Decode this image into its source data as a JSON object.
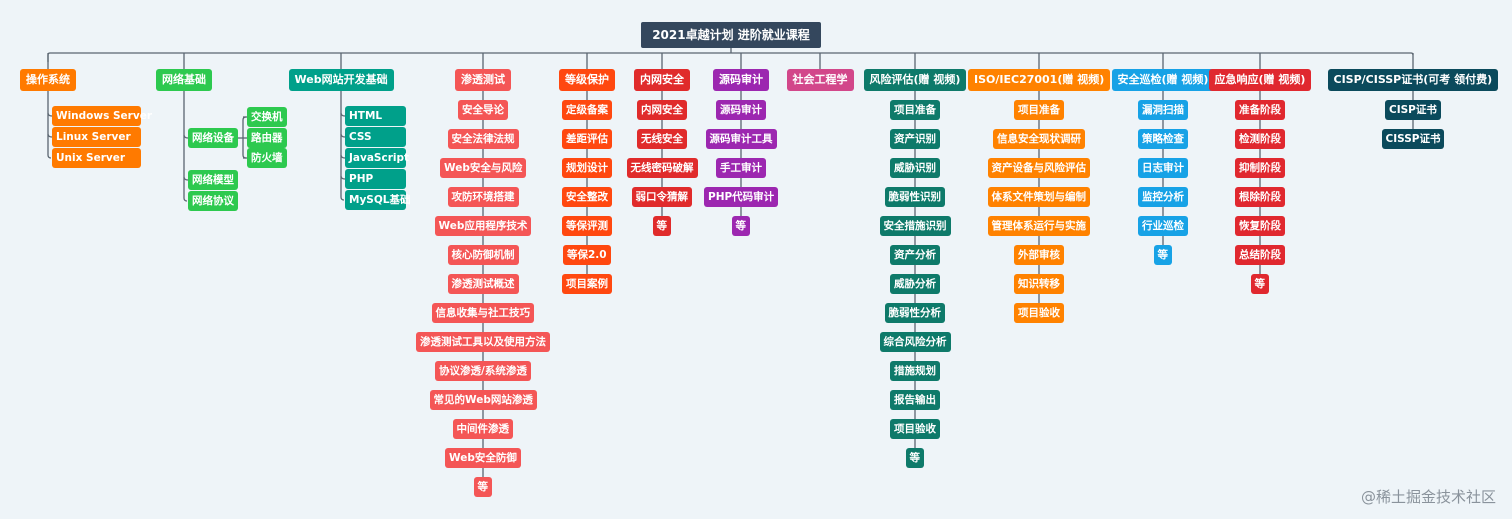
{
  "root": "2021卓越计划 进阶就业课程",
  "watermark": "@稀土掘金技术社区",
  "line_color": "#5a6570",
  "branches": [
    {
      "label": "操作系统",
      "color": "#ff7a00",
      "layout": "left",
      "children": [
        {
          "label": "Windows Server"
        },
        {
          "label": "Linux Server"
        },
        {
          "label": "Unix Server"
        }
      ]
    },
    {
      "label": "网络基础",
      "color": "#2dc94f",
      "layout": "left",
      "children": [
        {
          "label": "网络设备",
          "children": [
            {
              "label": "交换机"
            },
            {
              "label": "路由器"
            },
            {
              "label": "防火墙"
            }
          ]
        },
        {
          "label": "网络模型"
        },
        {
          "label": "网络协议"
        }
      ]
    },
    {
      "label": "Web网站开发基础",
      "color": "#00a08a",
      "layout": "left",
      "children": [
        {
          "label": "HTML"
        },
        {
          "label": "CSS"
        },
        {
          "label": "JavaScript"
        },
        {
          "label": "PHP"
        },
        {
          "label": "MySQL基础"
        }
      ]
    },
    {
      "label": "渗透测试",
      "color": "#f45656",
      "layout": "center",
      "children": [
        {
          "label": "安全导论"
        },
        {
          "label": "安全法律法规"
        },
        {
          "label": "Web安全与风险"
        },
        {
          "label": "攻防环境搭建"
        },
        {
          "label": "Web应用程序技术"
        },
        {
          "label": "核心防御机制"
        },
        {
          "label": "渗透测试概述"
        },
        {
          "label": "信息收集与社工技巧"
        },
        {
          "label": "渗透测试工具以及使用方法"
        },
        {
          "label": "协议渗透/系统渗透"
        },
        {
          "label": "常见的Web网站渗透"
        },
        {
          "label": "中间件渗透"
        },
        {
          "label": "Web安全防御"
        },
        {
          "label": "等"
        }
      ]
    },
    {
      "label": "等级保护",
      "color": "#ff4810",
      "layout": "center",
      "children": [
        {
          "label": "定级备案"
        },
        {
          "label": "差距评估"
        },
        {
          "label": "规划设计"
        },
        {
          "label": "安全整改"
        },
        {
          "label": "等保评测"
        },
        {
          "label": "等保2.0"
        },
        {
          "label": "项目案例"
        }
      ]
    },
    {
      "label": "内网安全",
      "color": "#e02b2b",
      "layout": "center",
      "children": [
        {
          "label": "内网安全"
        },
        {
          "label": "无线安全"
        },
        {
          "label": "无线密码破解"
        },
        {
          "label": "弱口令猜解"
        },
        {
          "label": "等"
        }
      ]
    },
    {
      "label": "源码审计",
      "color": "#9c27b0",
      "layout": "center",
      "children": [
        {
          "label": "源码审计"
        },
        {
          "label": "源码审计工具"
        },
        {
          "label": "手工审计"
        },
        {
          "label": "PHP代码审计"
        },
        {
          "label": "等"
        }
      ]
    },
    {
      "label": "社会工程学",
      "color": "#d2478a",
      "layout": "center",
      "children": []
    },
    {
      "label": "风险评估(赠 视频)",
      "color": "#0e7a6a",
      "layout": "center",
      "children": [
        {
          "label": "项目准备"
        },
        {
          "label": "资产识别"
        },
        {
          "label": "威胁识别"
        },
        {
          "label": "脆弱性识别"
        },
        {
          "label": "安全措施识别"
        },
        {
          "label": "资产分析"
        },
        {
          "label": "威胁分析"
        },
        {
          "label": "脆弱性分析"
        },
        {
          "label": "综合风险分析"
        },
        {
          "label": "措施规划"
        },
        {
          "label": "报告输出"
        },
        {
          "label": "项目验收"
        },
        {
          "label": "等"
        }
      ]
    },
    {
      "label": "ISO/IEC27001(赠 视频)",
      "color": "#ff8200",
      "layout": "center",
      "children": [
        {
          "label": "项目准备"
        },
        {
          "label": "信息安全现状调研"
        },
        {
          "label": "资产设备与风险评估"
        },
        {
          "label": "体系文件策划与编制"
        },
        {
          "label": "管理体系运行与实施"
        },
        {
          "label": "外部审核"
        },
        {
          "label": "知识转移"
        },
        {
          "label": "项目验收"
        }
      ]
    },
    {
      "label": "安全巡检(赠 视频)",
      "color": "#17a2e6",
      "layout": "center",
      "children": [
        {
          "label": "漏洞扫描"
        },
        {
          "label": "策略检查"
        },
        {
          "label": "日志审计"
        },
        {
          "label": "监控分析"
        },
        {
          "label": "行业巡检"
        },
        {
          "label": "等"
        }
      ]
    },
    {
      "label": "应急响应(赠 视频)",
      "color": "#e0282f",
      "layout": "center",
      "children": [
        {
          "label": "准备阶段"
        },
        {
          "label": "检测阶段"
        },
        {
          "label": "抑制阶段"
        },
        {
          "label": "根除阶段"
        },
        {
          "label": "恢复阶段"
        },
        {
          "label": "总结阶段"
        },
        {
          "label": "等"
        }
      ]
    },
    {
      "label": "CISP/CISSP证书(可考 领付费)",
      "color": "#0b4a5c",
      "layout": "center",
      "children": [
        {
          "label": "CISP证书"
        },
        {
          "label": "CISSP证书"
        }
      ]
    }
  ]
}
